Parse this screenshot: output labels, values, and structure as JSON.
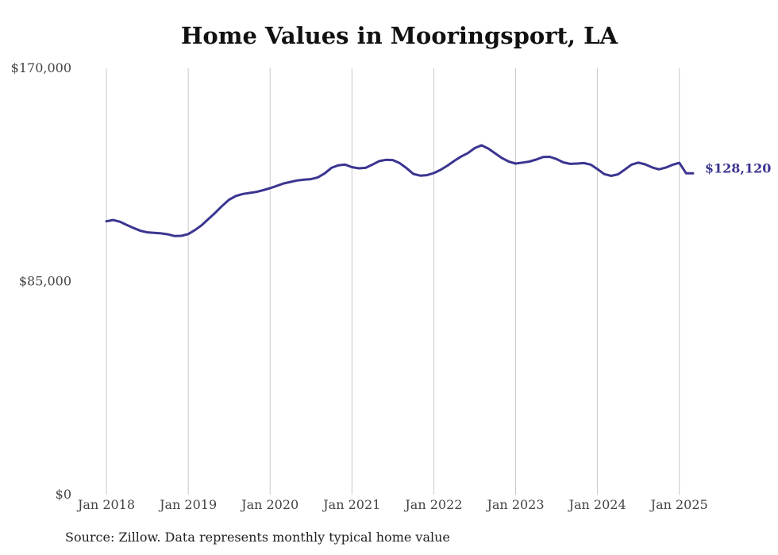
{
  "chart_data": {
    "type": "line",
    "title": "Home Values in Mooringsport, LA",
    "source": "Source: Zillow. Data represents monthly typical home value",
    "xlabel": "",
    "ylabel": "",
    "ylim": [
      0,
      170000
    ],
    "y_ticks": [
      "$170,000",
      "$85,000",
      "$0"
    ],
    "x_ticks": [
      "Jan 2018",
      "Jan 2019",
      "Jan 2020",
      "Jan 2021",
      "Jan 2022",
      "Jan 2023",
      "Jan 2024",
      "Jan 2025"
    ],
    "grid": "vertical",
    "line_color": "#3b3591",
    "end_label": "$128,120",
    "series": [
      {
        "x": [
          "2018-01",
          "2018-02",
          "2018-03",
          "2018-04",
          "2018-05",
          "2018-06",
          "2018-07",
          "2018-08",
          "2018-09",
          "2018-10",
          "2018-11",
          "2018-12",
          "2019-01",
          "2019-02",
          "2019-03",
          "2019-04",
          "2019-05",
          "2019-06",
          "2019-07",
          "2019-08",
          "2019-09",
          "2019-10",
          "2019-11",
          "2019-12",
          "2020-01",
          "2020-02",
          "2020-03",
          "2020-04",
          "2020-05",
          "2020-06",
          "2020-07",
          "2020-08",
          "2020-09",
          "2020-10",
          "2020-11",
          "2020-12",
          "2021-01",
          "2021-02",
          "2021-03",
          "2021-04",
          "2021-05",
          "2021-06",
          "2021-07",
          "2021-08",
          "2021-09",
          "2021-10",
          "2021-11",
          "2021-12",
          "2022-01",
          "2022-02",
          "2022-03",
          "2022-04",
          "2022-05",
          "2022-06",
          "2022-07",
          "2022-08",
          "2022-09",
          "2022-10",
          "2022-11",
          "2022-12",
          "2023-01",
          "2023-02",
          "2023-03",
          "2023-04",
          "2023-05",
          "2023-06",
          "2023-07",
          "2023-08",
          "2023-09",
          "2023-10",
          "2023-11",
          "2023-12",
          "2024-01",
          "2024-02",
          "2024-03",
          "2024-04",
          "2024-05",
          "2024-06",
          "2024-07",
          "2024-08",
          "2024-09",
          "2024-10",
          "2024-11",
          "2024-12",
          "2025-01",
          "2025-02",
          "2025-03"
        ],
        "values": [
          109000,
          109500,
          108800,
          107500,
          106300,
          105200,
          104600,
          104400,
          104200,
          103800,
          103100,
          103200,
          103900,
          105500,
          107500,
          110000,
          112500,
          115200,
          117600,
          119100,
          119900,
          120300,
          120700,
          121400,
          122200,
          123100,
          124100,
          124700,
          125300,
          125600,
          125800,
          126500,
          128100,
          130300,
          131300,
          131600,
          130600,
          130100,
          130300,
          131600,
          133000,
          133500,
          133400,
          132200,
          130200,
          127900,
          127200,
          127400,
          128200,
          129500,
          131200,
          133100,
          134800,
          136200,
          138200,
          139300,
          138000,
          136100,
          134200,
          132800,
          132000,
          132400,
          132800,
          133600,
          134600,
          134700,
          133800,
          132500,
          131900,
          132000,
          132200,
          131600,
          129800,
          127800,
          127100,
          127700,
          129600,
          131600,
          132400,
          131700,
          130500,
          129700,
          130400,
          131500,
          132300,
          128120,
          128120
        ]
      }
    ]
  }
}
